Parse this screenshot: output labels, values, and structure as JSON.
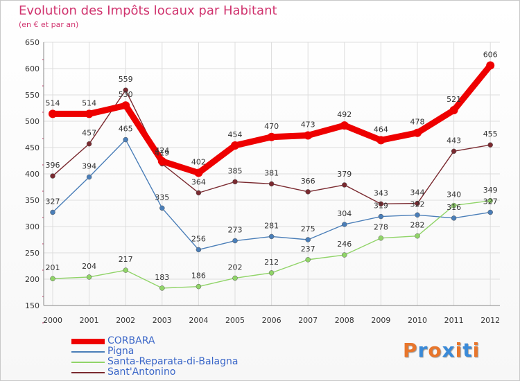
{
  "title": "Evolution des Impôts locaux par Habitant",
  "subtitle": "(en € et par an)",
  "logo": "Proxiti",
  "chart_data": {
    "type": "line",
    "x": [
      "2000",
      "2001",
      "2002",
      "2003",
      "2004",
      "2005",
      "2006",
      "2007",
      "2008",
      "2009",
      "2010",
      "2011",
      "2012"
    ],
    "ylim": [
      150,
      650
    ],
    "yticks": [
      150,
      200,
      250,
      300,
      350,
      400,
      450,
      500,
      550,
      600,
      650
    ],
    "grid": true,
    "legend_position": "bottom-left",
    "series": [
      {
        "name": "CORBARA",
        "color": "#ee0000",
        "width": 9,
        "values": [
          514,
          514,
          530,
          424,
          402,
          454,
          470,
          473,
          492,
          464,
          478,
          521,
          606
        ]
      },
      {
        "name": "Pigna",
        "color": "#4a7eb8",
        "width": 1.4,
        "values": [
          327,
          394,
          465,
          335,
          256,
          273,
          281,
          275,
          304,
          319,
          322,
          316,
          327
        ]
      },
      {
        "name": "Santa-Reparata-di-Balagna",
        "color": "#90d468",
        "width": 1.4,
        "values": [
          201,
          204,
          217,
          183,
          186,
          202,
          212,
          237,
          246,
          278,
          282,
          340,
          349
        ]
      },
      {
        "name": "Sant'Antonino",
        "color": "#7a2a30",
        "width": 1.4,
        "values": [
          396,
          457,
          559,
          419,
          364,
          385,
          381,
          366,
          379,
          343,
          344,
          443,
          455
        ]
      }
    ]
  }
}
